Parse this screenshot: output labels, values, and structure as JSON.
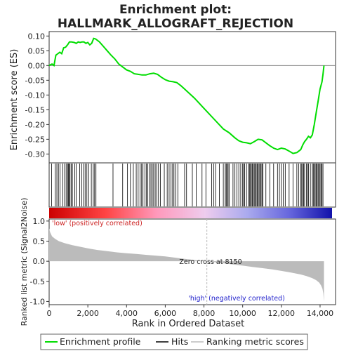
{
  "chart_data": [
    {
      "type": "line",
      "title": "Enrichment plot:",
      "subtitle": "HALLMARK_ALLOGRAFT_REJECTION",
      "xlabel": "",
      "ylabel": "Enrichment score (ES)",
      "xlim": [
        0,
        14800
      ],
      "ylim": [
        -0.33,
        0.115
      ],
      "yticks": [
        0.1,
        0.05,
        0.0,
        -0.05,
        -0.1,
        -0.15,
        -0.2,
        -0.25,
        -0.3
      ],
      "ytick_labels": [
        "0.10",
        "0.05",
        "0.00",
        "-0.05",
        "-0.10",
        "-0.15",
        "-0.20",
        "-0.25",
        "-0.30"
      ],
      "series": [
        {
          "name": "Enrichment profile",
          "color": "#00dd00",
          "x": [
            0,
            150,
            250,
            350,
            450,
            550,
            650,
            750,
            850,
            950,
            1050,
            1150,
            1300,
            1400,
            1500,
            1600,
            1700,
            1800,
            1900,
            2000,
            2100,
            2200,
            2300,
            2400,
            2600,
            2800,
            3000,
            3200,
            3400,
            3600,
            3800,
            4000,
            4200,
            4400,
            4600,
            4800,
            5000,
            5200,
            5400,
            5600,
            5800,
            6000,
            6200,
            6400,
            6600,
            6800,
            7000,
            7500,
            8000,
            8500,
            9000,
            9300,
            9600,
            9800,
            10000,
            10200,
            10400,
            10600,
            10800,
            11000,
            11200,
            11400,
            11600,
            11800,
            12000,
            12200,
            12400,
            12600,
            12800,
            13000,
            13100,
            13200,
            13300,
            13400,
            13500,
            13600,
            13700,
            13800,
            13900,
            14000,
            14100,
            14150,
            14200
          ],
          "y": [
            0.0,
            0.005,
            0.0,
            0.035,
            0.04,
            0.045,
            0.04,
            0.06,
            0.062,
            0.07,
            0.08,
            0.08,
            0.078,
            0.075,
            0.08,
            0.078,
            0.08,
            0.08,
            0.075,
            0.078,
            0.07,
            0.075,
            0.092,
            0.09,
            0.08,
            0.065,
            0.05,
            0.035,
            0.022,
            0.005,
            -0.005,
            -0.015,
            -0.02,
            -0.028,
            -0.03,
            -0.032,
            -0.032,
            -0.028,
            -0.026,
            -0.03,
            -0.04,
            -0.048,
            -0.053,
            -0.055,
            -0.058,
            -0.068,
            -0.08,
            -0.11,
            -0.145,
            -0.18,
            -0.215,
            -0.228,
            -0.245,
            -0.255,
            -0.26,
            -0.262,
            -0.265,
            -0.258,
            -0.25,
            -0.252,
            -0.262,
            -0.272,
            -0.28,
            -0.285,
            -0.28,
            -0.283,
            -0.29,
            -0.298,
            -0.295,
            -0.285,
            -0.27,
            -0.258,
            -0.25,
            -0.24,
            -0.245,
            -0.235,
            -0.2,
            -0.16,
            -0.12,
            -0.08,
            -0.055,
            -0.03,
            0.0
          ]
        }
      ]
    },
    {
      "type": "table",
      "name": "hits",
      "hit_positions": [
        130,
        320,
        400,
        480,
        560,
        700,
        800,
        880,
        960,
        1000,
        1040,
        1080,
        1150,
        1200,
        1320,
        1400,
        1580,
        1680,
        1780,
        1860,
        1950,
        2050,
        2180,
        2280,
        2350,
        2420,
        3300,
        3800,
        4050,
        4200,
        4350,
        4500,
        4600,
        4700,
        4780,
        4850,
        4950,
        5030,
        5100,
        5180,
        5260,
        5330,
        5400,
        5480,
        5560,
        5650,
        5750,
        5950,
        6100,
        6200,
        6300,
        6380,
        6450,
        6550,
        6650,
        7000,
        7100,
        7400,
        7600,
        7900,
        8100,
        8400,
        8500,
        8600,
        8800,
        9000,
        9100,
        9150,
        9200,
        9250,
        9300,
        9500,
        9600,
        9700,
        9800,
        9900,
        10000,
        10050,
        10100,
        10200,
        10300,
        10350,
        10400,
        10450,
        10500,
        10550,
        10600,
        10650,
        10700,
        10750,
        10800,
        10850,
        10900,
        10950,
        11000,
        11050,
        11200,
        11400,
        11600,
        11800,
        11900,
        12000,
        12100,
        12200,
        12400,
        12600,
        12800,
        12900,
        13000,
        13050,
        13100,
        13150,
        13200,
        13300,
        13350,
        13400,
        13500,
        13600,
        13650,
        13700,
        13750,
        13800,
        13850,
        13900,
        13950,
        14000,
        14050,
        14100,
        14150
      ]
    },
    {
      "type": "area",
      "xlabel": "Rank in Ordered Dataset",
      "ylabel": "Ranked list metric (Signal2Noise)",
      "xlim": [
        0,
        14800
      ],
      "ylim": [
        -1.08,
        1.05
      ],
      "xticks": [
        0,
        2000,
        4000,
        6000,
        8000,
        10000,
        12000,
        14000
      ],
      "xtick_labels": [
        "0",
        "2,000",
        "4,000",
        "6,000",
        "8,000",
        "10,000",
        "12,000",
        "14,000"
      ],
      "yticks": [
        1.0,
        0.5,
        0.0,
        -0.5,
        -1.0
      ],
      "ytick_labels": [
        "1.0",
        "0.5",
        "0.0",
        "-0.5",
        "-1.0"
      ],
      "series": [
        {
          "name": "Ranking metric scores",
          "color": "#bbbbbb",
          "x": [
            0,
            50,
            150,
            300,
            500,
            800,
            1200,
            1600,
            2000,
            2500,
            3000,
            3500,
            4000,
            4500,
            5000,
            5500,
            6000,
            6500,
            7000,
            7500,
            8000,
            8150,
            8500,
            9000,
            9500,
            10000,
            10500,
            11000,
            11500,
            12000,
            12500,
            13000,
            13300,
            13600,
            13800,
            13950,
            14050,
            14120,
            14170,
            14200
          ],
          "y": [
            0.82,
            0.72,
            0.62,
            0.56,
            0.5,
            0.45,
            0.4,
            0.36,
            0.32,
            0.28,
            0.25,
            0.22,
            0.2,
            0.18,
            0.16,
            0.14,
            0.12,
            0.09,
            0.06,
            0.03,
            0.005,
            0.0,
            -0.02,
            -0.05,
            -0.08,
            -0.11,
            -0.14,
            -0.17,
            -0.2,
            -0.24,
            -0.28,
            -0.33,
            -0.37,
            -0.42,
            -0.47,
            -0.53,
            -0.6,
            -0.68,
            -0.8,
            -1.0
          ]
        }
      ],
      "annotations": [
        {
          "text": "'low' (positively correlated)",
          "x": 100,
          "color": "#cc2222"
        },
        {
          "text": "Zero cross at 8150",
          "x": 8150
        },
        {
          "text": "'high' (negatively correlated)",
          "x": 11300,
          "color": "#2222cc"
        }
      ],
      "zero_cross": 8150
    }
  ],
  "legend": {
    "placement": "bottom",
    "items": [
      {
        "label": "Enrichment profile",
        "color": "#00dd00"
      },
      {
        "label": "Hits",
        "color": "#000000"
      },
      {
        "label": "Ranking metric scores",
        "color": "#bbbbbb"
      }
    ]
  }
}
